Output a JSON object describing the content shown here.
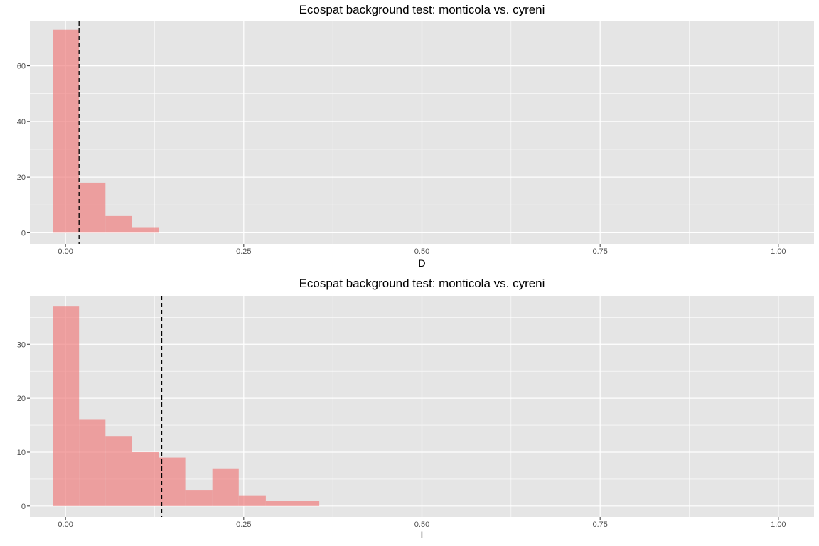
{
  "colors": {
    "panel": "#e5e5e5",
    "grid": "#ffffff",
    "bar": "#f08080",
    "bar_alpha": 0.7,
    "vline": "#000000"
  },
  "chart_data": [
    {
      "type": "bar",
      "title": "Ecospat background test: monticola vs. cyreni",
      "xlabel": "D",
      "ylabel": "",
      "xlim": [
        -0.05,
        1.05
      ],
      "ylim": [
        -4,
        76
      ],
      "xticks": [
        0.0,
        0.25,
        0.5,
        0.75,
        1.0
      ],
      "xtick_labels": [
        "0.00",
        "0.25",
        "0.50",
        "0.75",
        "1.00"
      ],
      "yticks": [
        0,
        20,
        40,
        60
      ],
      "ytick_labels": [
        "0",
        "20",
        "40",
        "60"
      ],
      "bin_edges": [
        -0.018,
        0.019,
        0.056,
        0.093,
        0.131
      ],
      "values": [
        73,
        18,
        6,
        2
      ],
      "observed_line": 0.019
    },
    {
      "type": "bar",
      "title": "Ecospat background test: monticola vs. cyreni",
      "xlabel": "I",
      "ylabel": "",
      "xlim": [
        -0.05,
        1.05
      ],
      "ylim": [
        -2,
        39
      ],
      "xticks": [
        0.0,
        0.25,
        0.5,
        0.75,
        1.0
      ],
      "xtick_labels": [
        "0.00",
        "0.25",
        "0.50",
        "0.75",
        "1.00"
      ],
      "yticks": [
        0,
        10,
        20,
        30
      ],
      "ytick_labels": [
        "0",
        "10",
        "20",
        "30"
      ],
      "bin_edges": [
        -0.018,
        0.019,
        0.056,
        0.093,
        0.131,
        0.168,
        0.206,
        0.243,
        0.281,
        0.318,
        0.356
      ],
      "values": [
        37,
        16,
        13,
        10,
        9,
        3,
        7,
        2,
        1,
        1
      ],
      "observed_line": 0.135
    }
  ]
}
